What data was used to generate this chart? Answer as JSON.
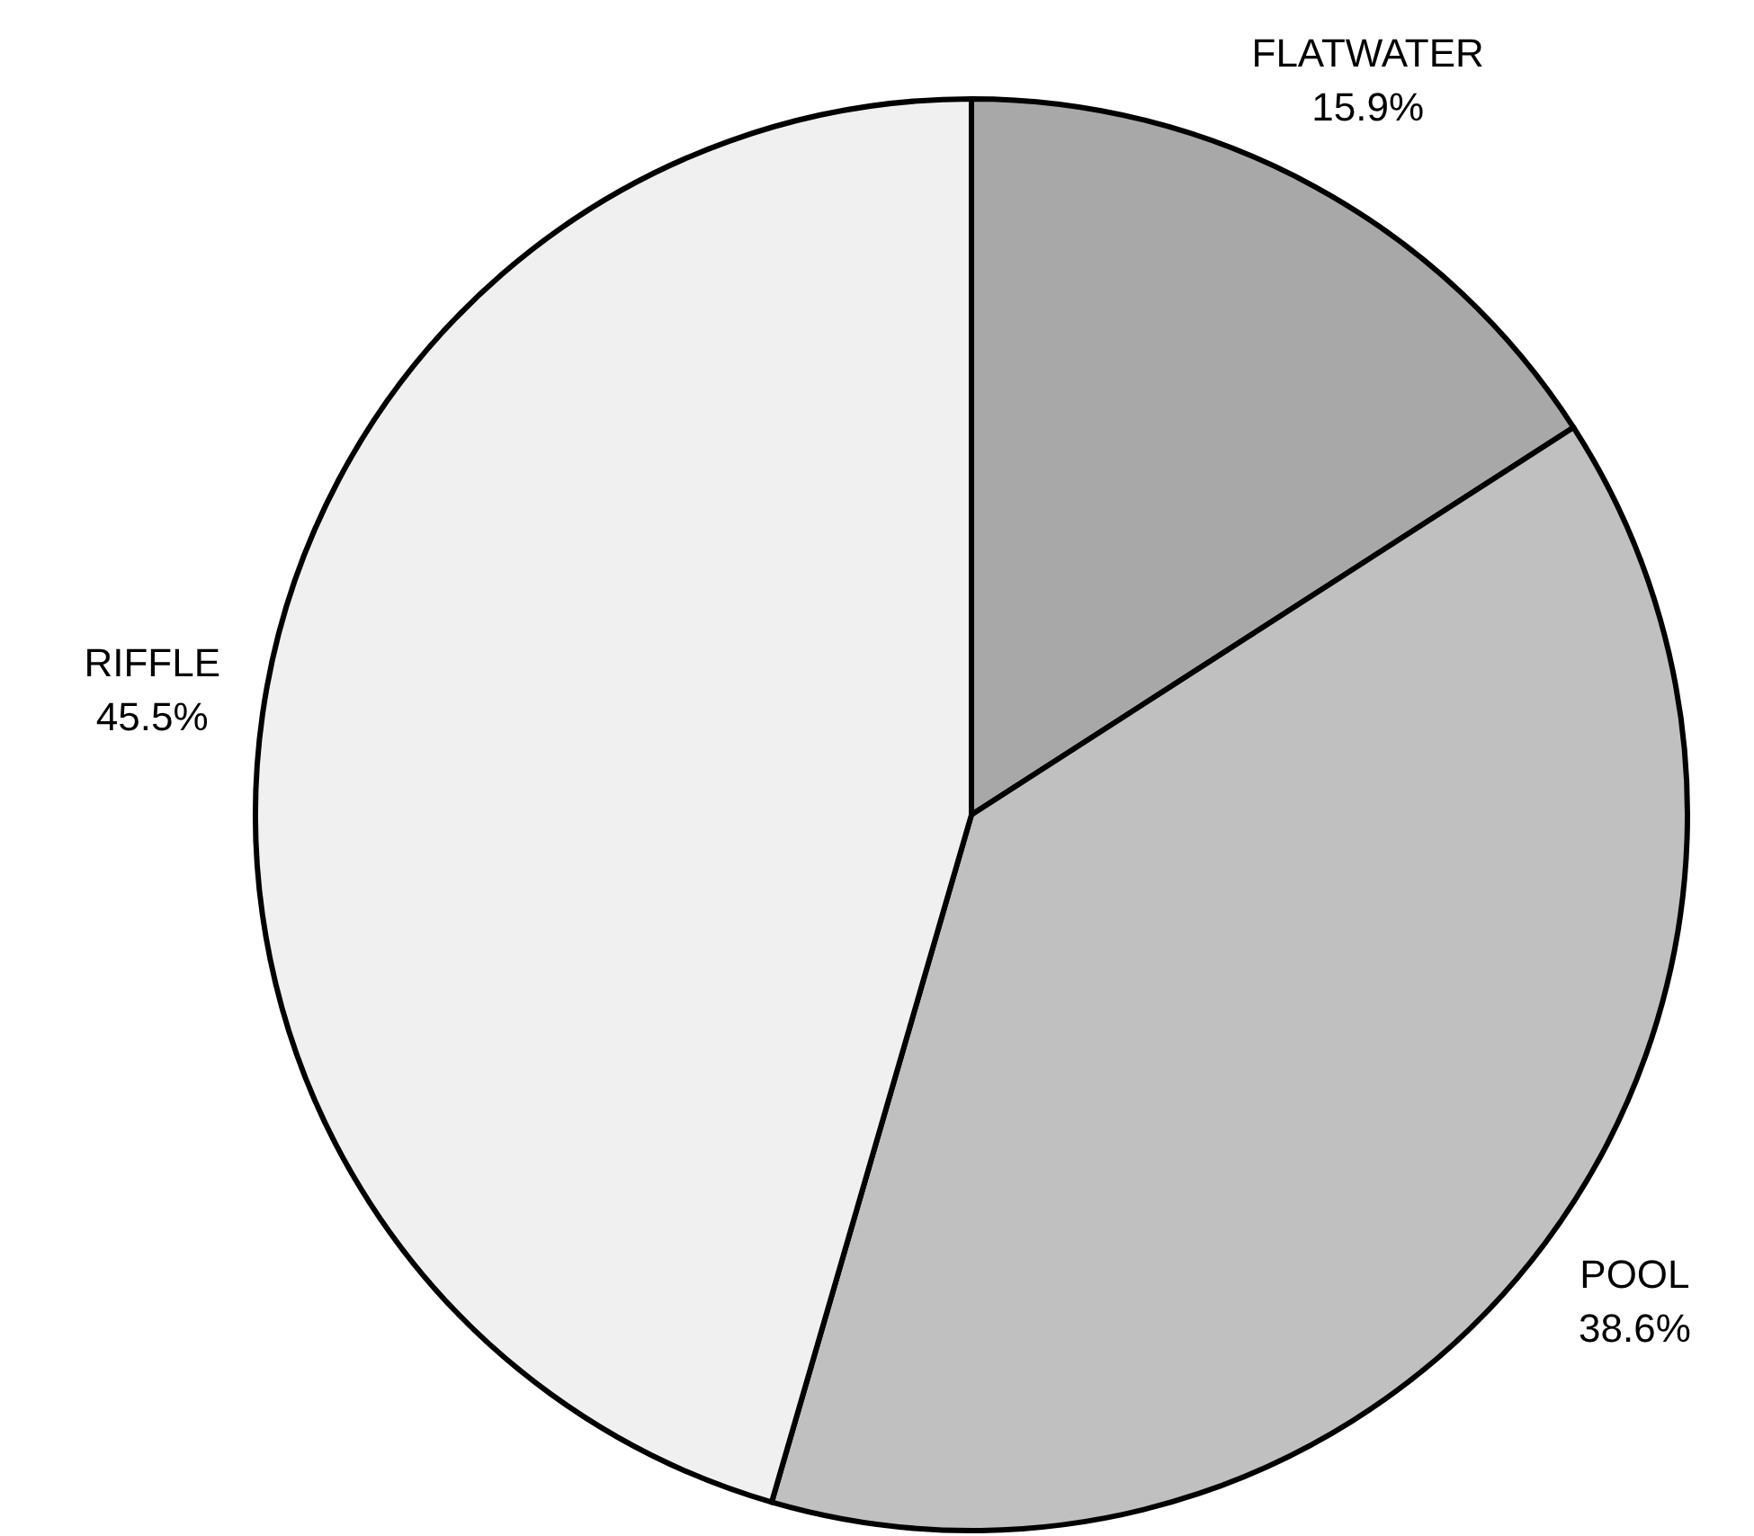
{
  "chart_data": {
    "type": "pie",
    "categories": [
      "FLATWATER",
      "POOL",
      "RIFFLE"
    ],
    "values": [
      15.9,
      38.6,
      45.5
    ],
    "colors": [
      "#a8a8a8",
      "#c0c0c0",
      "#f0f0f0"
    ],
    "value_labels": [
      "15.9%",
      "38.6%",
      "45.5%"
    ]
  }
}
